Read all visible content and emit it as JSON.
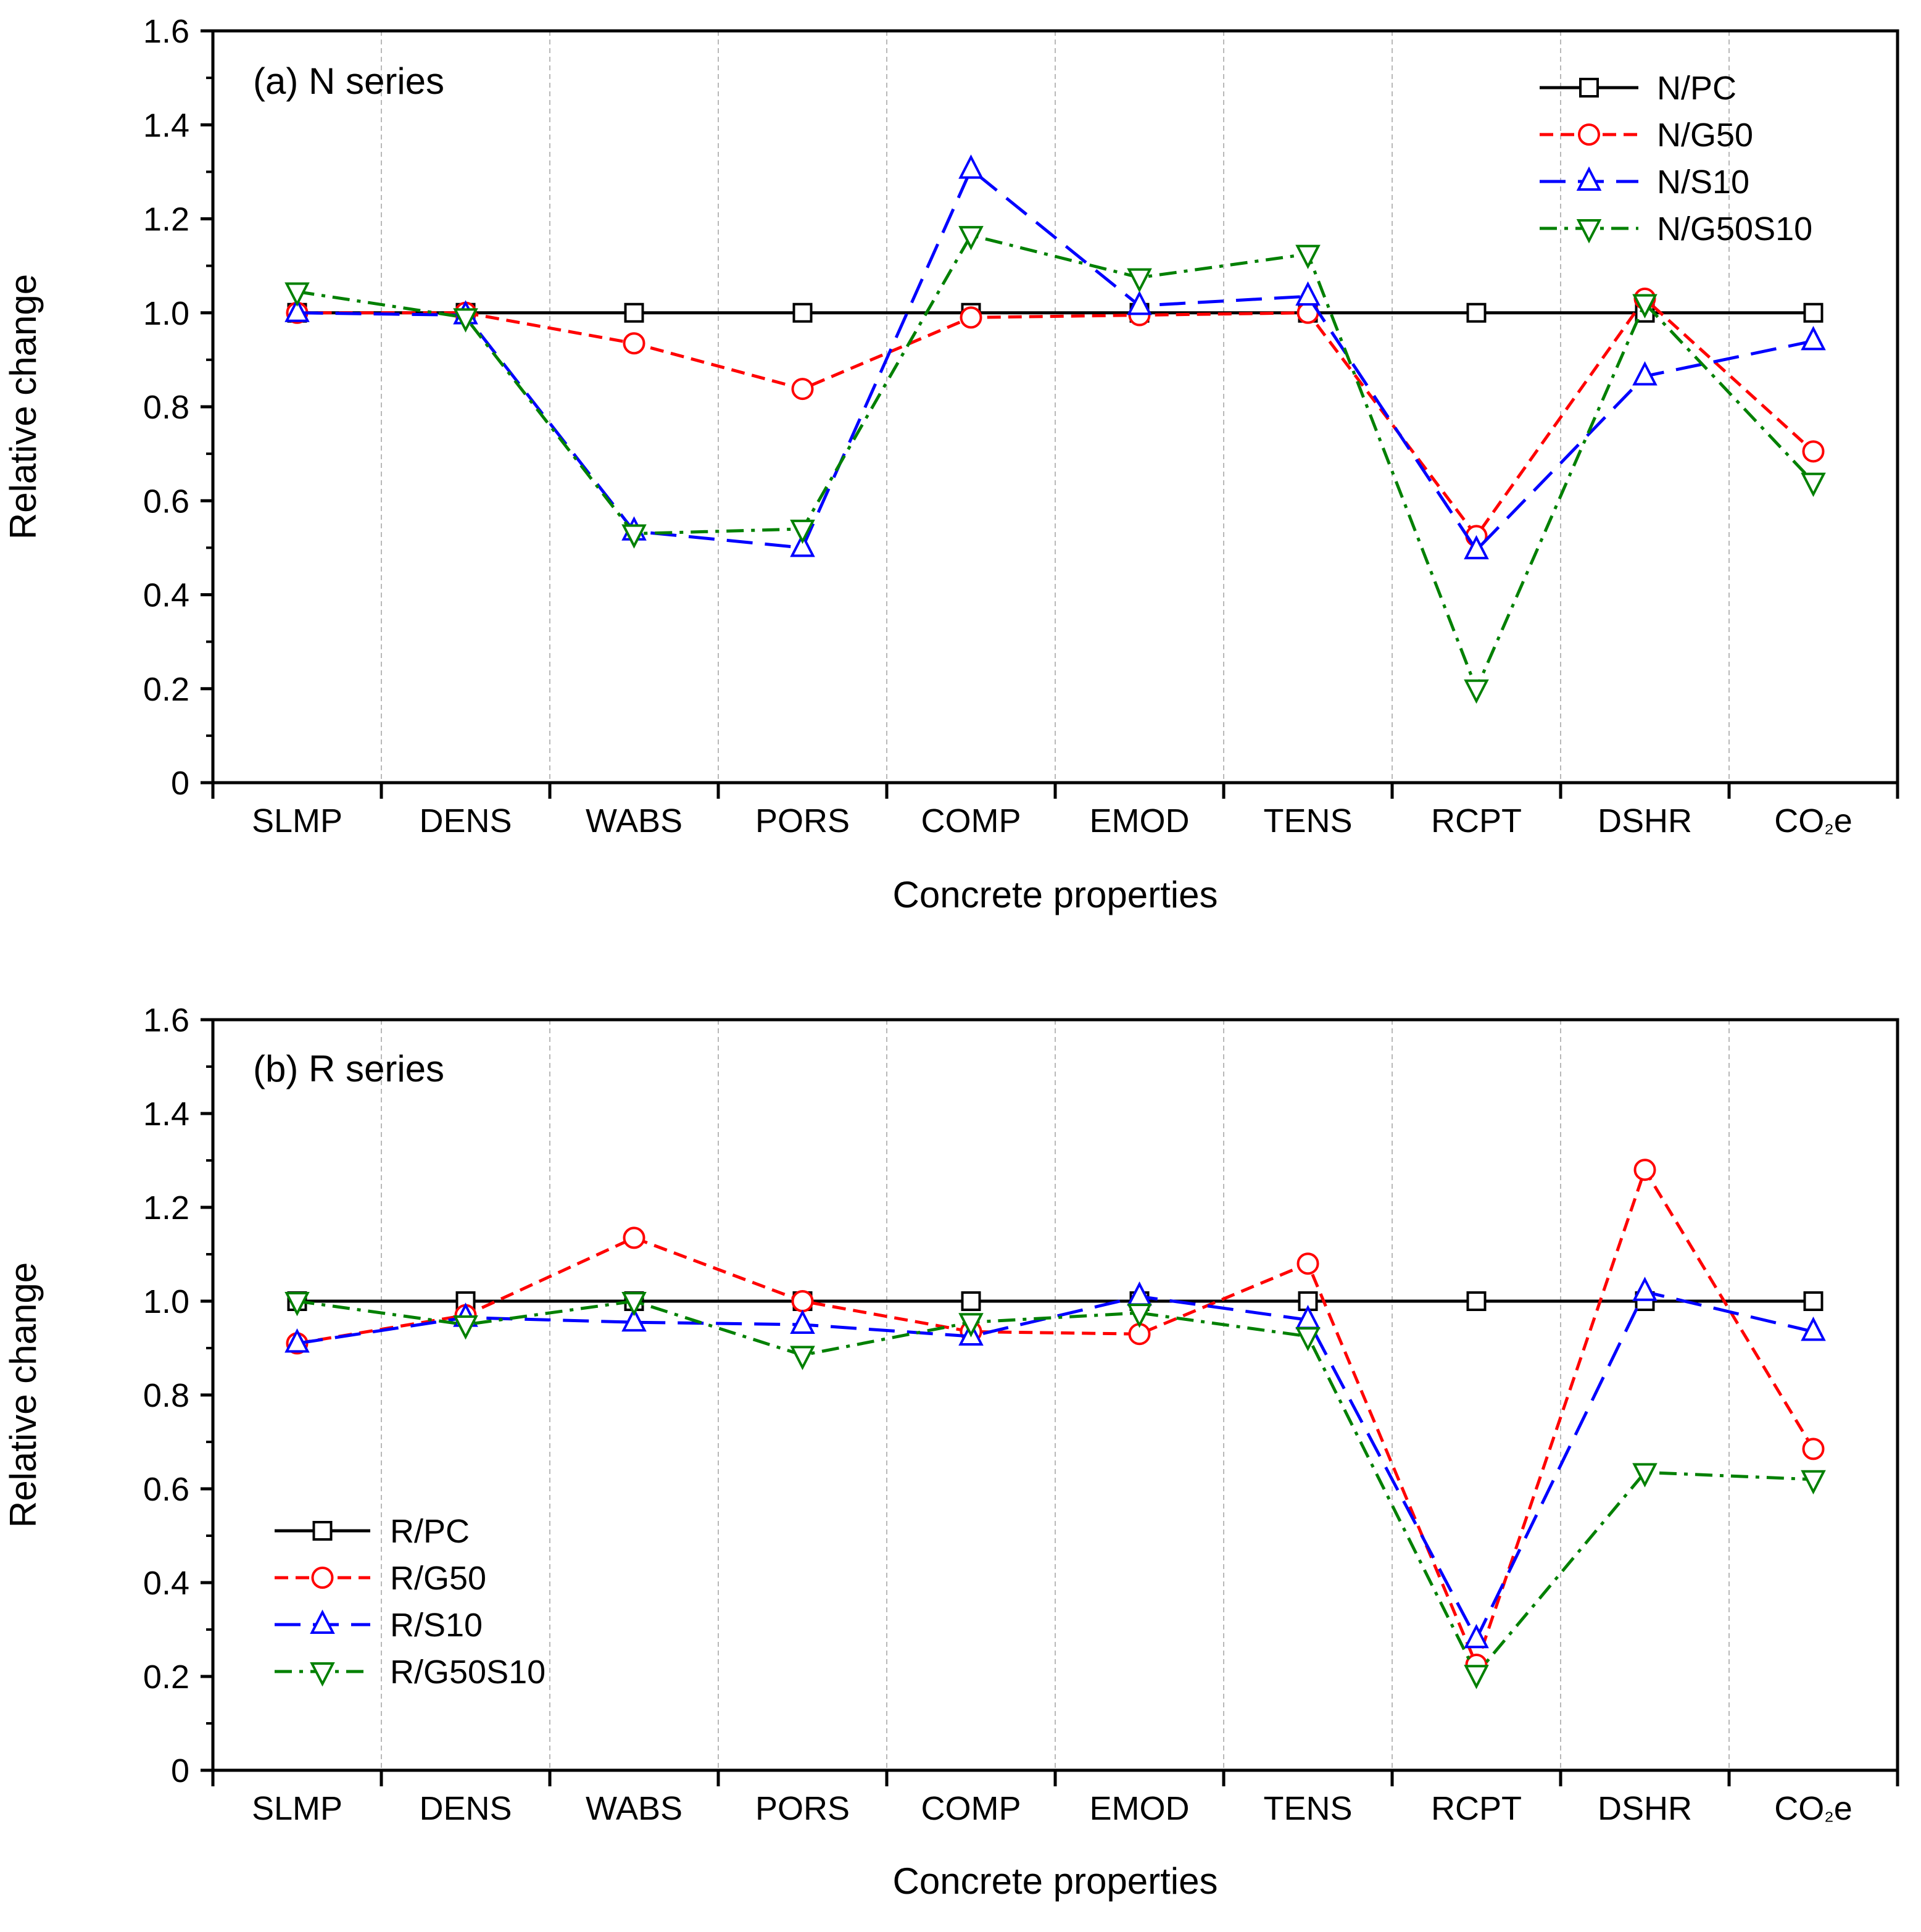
{
  "chart_data": [
    {
      "type": "line",
      "title": "(a) N series",
      "xlabel": "Concrete properties",
      "ylabel": "Relative change",
      "ylim": [
        0,
        1.6
      ],
      "yticks": [
        "0",
        "0.2",
        "0.4",
        "0.6",
        "0.8",
        "1.0",
        "1.2",
        "1.4",
        "1.6"
      ],
      "grid": "vertical dotted",
      "legend_position": "top-right",
      "categories": [
        "SLMP",
        "DENS",
        "WABS",
        "PORS",
        "COMP",
        "EMOD",
        "TENS",
        "RCPT",
        "DSHR",
        "CO₂e"
      ],
      "series": [
        {
          "name": "N/PC",
          "color": "#000000",
          "marker": "square",
          "dash": "solid",
          "values": [
            1.0,
            1.0,
            1.0,
            1.0,
            1.0,
            1.0,
            1.0,
            1.0,
            1.0,
            1.0
          ]
        },
        {
          "name": "N/G50",
          "color": "#ff0000",
          "marker": "circle",
          "dash": "dash",
          "values": [
            1.0,
            1.0,
            0.935,
            0.838,
            0.99,
            0.995,
            1.0,
            0.525,
            1.03,
            0.705
          ]
        },
        {
          "name": "N/S10",
          "color": "#0000ff",
          "marker": "triangle-up",
          "dash": "longdash",
          "values": [
            1.0,
            0.995,
            0.535,
            0.5,
            1.305,
            1.015,
            1.035,
            0.495,
            0.865,
            0.94
          ]
        },
        {
          "name": "N/G50S10",
          "color": "#008000",
          "marker": "triangle-down",
          "dash": "dashdot",
          "values": [
            1.045,
            0.99,
            0.53,
            0.54,
            1.165,
            1.075,
            1.125,
            0.2,
            1.02,
            0.64
          ]
        }
      ]
    },
    {
      "type": "line",
      "title": "(b) R series",
      "xlabel": "Concrete properties",
      "ylabel": "Relative change",
      "ylim": [
        0,
        1.6
      ],
      "yticks": [
        "0",
        "0.2",
        "0.4",
        "0.6",
        "0.8",
        "1.0",
        "1.2",
        "1.4",
        "1.6"
      ],
      "grid": "vertical dotted",
      "legend_position": "bottom-left",
      "categories": [
        "SLMP",
        "DENS",
        "WABS",
        "PORS",
        "COMP",
        "EMOD",
        "TENS",
        "RCPT",
        "DSHR",
        "CO₂e"
      ],
      "series": [
        {
          "name": "R/PC",
          "color": "#000000",
          "marker": "square",
          "dash": "solid",
          "values": [
            1.0,
            1.0,
            1.0,
            1.0,
            1.0,
            1.0,
            1.0,
            1.0,
            1.0,
            1.0
          ]
        },
        {
          "name": "R/G50",
          "color": "#ff0000",
          "marker": "circle",
          "dash": "dash",
          "values": [
            0.91,
            0.97,
            1.135,
            1.0,
            0.935,
            0.93,
            1.08,
            0.225,
            1.28,
            0.685
          ]
        },
        {
          "name": "R/S10",
          "color": "#0000ff",
          "marker": "triangle-up",
          "dash": "longdash",
          "values": [
            0.91,
            0.965,
            0.955,
            0.95,
            0.925,
            1.01,
            0.96,
            0.28,
            1.02,
            0.935
          ]
        },
        {
          "name": "R/G50S10",
          "color": "#008000",
          "marker": "triangle-down",
          "dash": "dashdot",
          "values": [
            1.0,
            0.95,
            1.0,
            0.885,
            0.955,
            0.975,
            0.925,
            0.205,
            0.635,
            0.62
          ]
        }
      ]
    }
  ]
}
